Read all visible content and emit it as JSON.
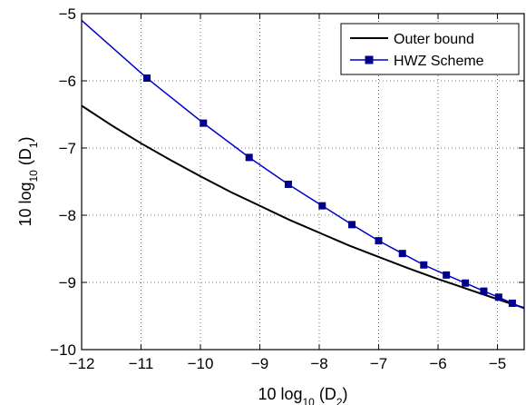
{
  "chart_data": {
    "type": "line",
    "xlabel": {
      "prefix": "10 log",
      "sub": "10",
      "mid": " (D",
      "sub2": "2",
      "suffix": ")"
    },
    "ylabel": {
      "prefix": "10 log",
      "sub": "10",
      "mid": " (D",
      "sub2": "1",
      "suffix": ")"
    },
    "xlim": [
      -12,
      -4.55
    ],
    "ylim": [
      -10,
      -5
    ],
    "xticks": [
      -12,
      -11,
      -10,
      -9,
      -8,
      -7,
      -6,
      -5
    ],
    "xtick_labels": [
      "−12",
      "−11",
      "−10",
      "−9",
      "−8",
      "−7",
      "−6",
      "−5"
    ],
    "yticks": [
      -10,
      -9,
      -8,
      -7,
      -6,
      -5
    ],
    "ytick_labels": [
      "−10",
      "−9",
      "−8",
      "−7",
      "−6",
      "−5"
    ],
    "grid": true,
    "legend_position": "top-right",
    "series": [
      {
        "name": "Outer bound",
        "color": "#000000",
        "marker": "none",
        "x": [
          -12.0,
          -11.5,
          -11.0,
          -10.5,
          -10.0,
          -9.5,
          -9.0,
          -8.5,
          -8.0,
          -7.5,
          -7.0,
          -6.5,
          -6.0,
          -5.5,
          -5.0,
          -4.55
        ],
        "y": [
          -6.37,
          -6.66,
          -6.93,
          -7.18,
          -7.42,
          -7.65,
          -7.86,
          -8.07,
          -8.26,
          -8.45,
          -8.62,
          -8.79,
          -8.95,
          -9.1,
          -9.25,
          -9.38
        ]
      },
      {
        "name": "HWZ Scheme",
        "color": "#0000cc",
        "marker_color": "#00008b",
        "marker": "square",
        "x": [
          -12.0,
          -10.9,
          -9.95,
          -9.18,
          -8.52,
          -7.95,
          -7.45,
          -7.0,
          -6.6,
          -6.24,
          -5.86,
          -5.54,
          -5.23,
          -4.98,
          -4.75,
          -4.55
        ],
        "y": [
          -5.1,
          -5.96,
          -6.63,
          -7.14,
          -7.54,
          -7.86,
          -8.14,
          -8.38,
          -8.57,
          -8.74,
          -8.89,
          -9.01,
          -9.13,
          -9.22,
          -9.31,
          -9.39
        ],
        "marker_indices": [
          1,
          2,
          3,
          4,
          5,
          6,
          7,
          8,
          9,
          10,
          11,
          12,
          13,
          14
        ]
      }
    ]
  }
}
